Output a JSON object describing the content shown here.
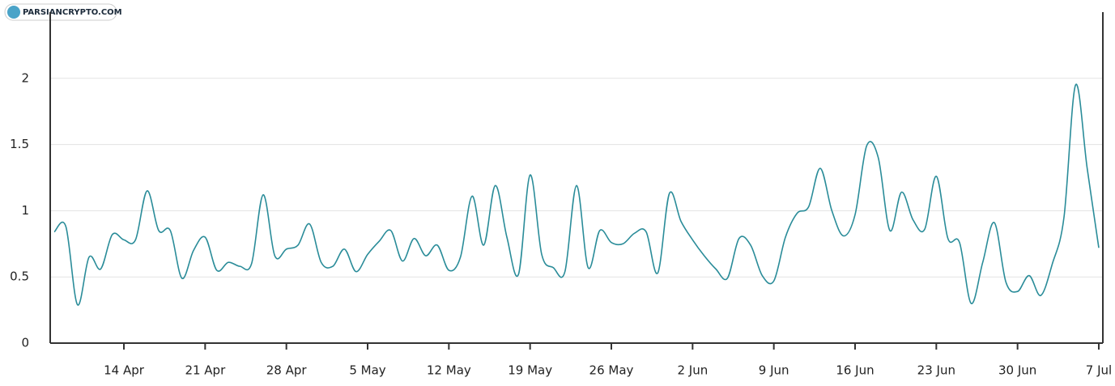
{
  "watermark": "PARSIANCRYPTO.COM",
  "chart_data": {
    "type": "line",
    "categories": [
      null,
      null,
      null,
      null,
      null,
      null,
      "14 Apr",
      null,
      null,
      null,
      null,
      null,
      null,
      "21 Apr",
      null,
      null,
      null,
      null,
      null,
      null,
      "28 Apr",
      null,
      null,
      null,
      null,
      null,
      null,
      "5 May",
      null,
      null,
      null,
      null,
      null,
      null,
      "12 May",
      null,
      null,
      null,
      null,
      null,
      null,
      "19 May",
      null,
      null,
      null,
      null,
      null,
      null,
      "26 May",
      null,
      null,
      null,
      null,
      null,
      null,
      "2 Jun",
      null,
      null,
      null,
      null,
      null,
      null,
      "9 Jun",
      null,
      null,
      null,
      null,
      null,
      null,
      "16 Jun",
      null,
      null,
      null,
      null,
      null,
      null,
      "23 Jun",
      null,
      null,
      null,
      null,
      null,
      null,
      "30 Jun",
      null,
      null,
      null,
      null,
      null,
      null,
      "7 Jul"
    ],
    "series": [
      {
        "color": "#2a8c99",
        "values": [
          0.84,
          0.88,
          0.29,
          0.65,
          0.56,
          0.82,
          0.78,
          0.78,
          1.15,
          0.85,
          0.85,
          0.49,
          0.7,
          0.8,
          0.55,
          0.61,
          0.58,
          0.6,
          1.12,
          0.66,
          0.71,
          0.74,
          0.9,
          0.61,
          0.58,
          0.71,
          0.54,
          0.67,
          0.77,
          0.85,
          0.62,
          0.79,
          0.66,
          0.74,
          0.55,
          0.65,
          1.11,
          0.74,
          1.19,
          0.8,
          0.52,
          1.27,
          0.67,
          0.57,
          0.54,
          1.19,
          0.57,
          0.85,
          0.76,
          0.75,
          0.83,
          0.84,
          0.53,
          1.13,
          0.92,
          0.78,
          0.66,
          0.56,
          0.49,
          0.79,
          0.74,
          0.51,
          0.47,
          0.8,
          0.98,
          1.03,
          1.32,
          1.0,
          0.81,
          0.97,
          1.49,
          1.4,
          0.85,
          1.14,
          0.93,
          0.86,
          1.26,
          0.79,
          0.76,
          0.3,
          0.61,
          0.91,
          0.46,
          0.39,
          0.51,
          0.36,
          0.6,
          0.95,
          1.95,
          1.32,
          0.72
        ]
      }
    ],
    "ylim": [
      0,
      2.5
    ],
    "yticks": [
      0,
      0.5,
      1,
      1.5,
      2
    ],
    "grid": true
  }
}
